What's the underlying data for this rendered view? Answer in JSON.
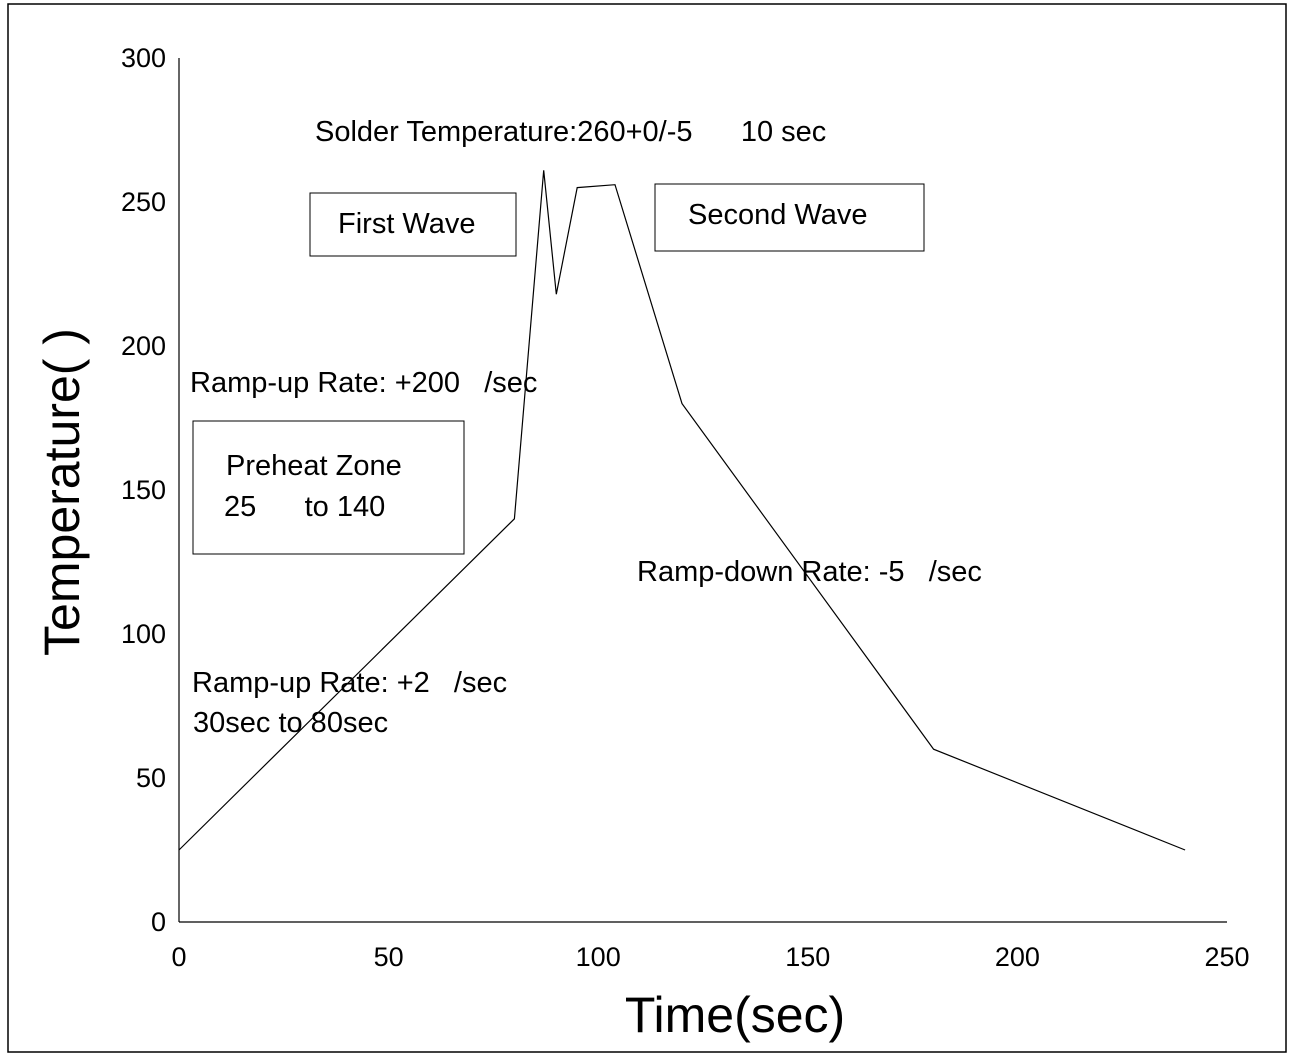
{
  "chart_data": {
    "type": "line",
    "title": "",
    "xlabel": "Time(sec)",
    "ylabel": "Temperature(   )",
    "xlim": [
      0,
      250
    ],
    "ylim": [
      0,
      300
    ],
    "x_ticks": [
      "0",
      "50",
      "100",
      "150",
      "200",
      "250"
    ],
    "y_ticks": [
      "0",
      "50",
      "100",
      "150",
      "200",
      "250",
      "300"
    ],
    "grid": false,
    "legend": "none",
    "line_color": "#000000",
    "series": [
      {
        "x": [
          0,
          80,
          87,
          90,
          95,
          104,
          120,
          180,
          240
        ],
        "y": [
          25,
          140,
          261,
          218,
          255,
          256,
          180,
          60,
          25
        ]
      }
    ],
    "annotations": {
      "solder_temp": "Solder Temperature:260+0/-5      10 sec",
      "first_wave": "First Wave",
      "second_wave": "Second Wave",
      "ramp_up_fast": "Ramp-up Rate: +200   /sec",
      "preheat_line1": "Preheat Zone",
      "preheat_line2": "25      to 140",
      "ramp_down": "Ramp-down Rate: -5   /sec",
      "ramp_up_slow_line1": "Ramp-up Rate: +2   /sec",
      "ramp_up_slow_line2": "30sec to 80sec"
    }
  }
}
